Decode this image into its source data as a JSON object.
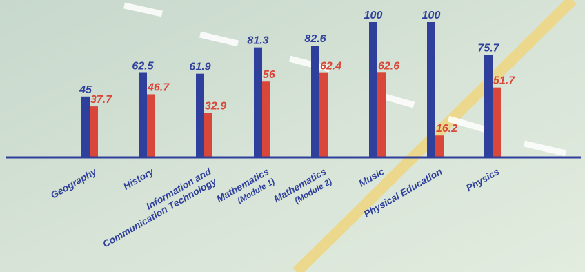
{
  "chart_data": {
    "type": "bar",
    "categories": [
      [
        "Geography"
      ],
      [
        "History"
      ],
      [
        "Information and",
        "Communication Technology"
      ],
      [
        "Mathematics",
        "(Module 1)"
      ],
      [
        "Mathematics",
        "(Module 2)"
      ],
      [
        "Music"
      ],
      [
        "Physical Education"
      ],
      [
        "Physics"
      ]
    ],
    "series": [
      {
        "values": [
          45,
          62.5,
          61.9,
          81.3,
          82.6,
          100,
          100,
          75.7
        ],
        "color": "#2f3f9c"
      },
      {
        "values": [
          37.7,
          46.7,
          32.9,
          56,
          62.4,
          62.6,
          16.2,
          51.7
        ],
        "color": "#d9463a"
      }
    ],
    "value_labels": [
      [
        "45",
        "62.5",
        "61.9",
        "81.3",
        "82.6",
        "100",
        "100",
        "75.7"
      ],
      [
        "37.7",
        "46.7",
        "32.9",
        "56",
        "62.4",
        "62.6",
        "16.2",
        "51.7"
      ]
    ],
    "ylim": [
      0,
      100
    ],
    "grid": false,
    "legend": "none",
    "axis_color": "#2f3f9c",
    "background_color": "#d8e5d8"
  }
}
